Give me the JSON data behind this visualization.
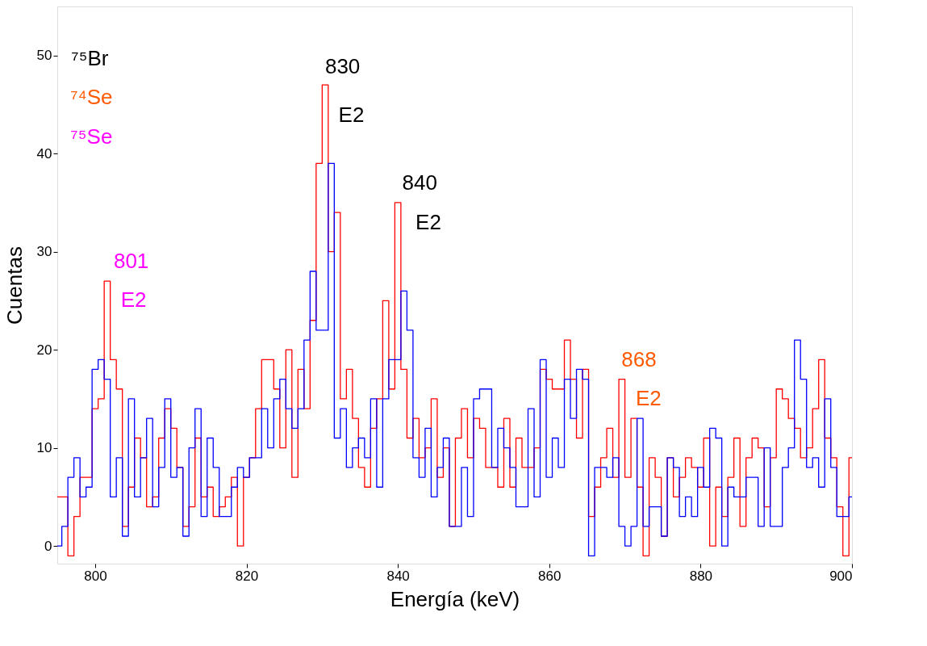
{
  "chart_data": {
    "type": "histogram",
    "xlabel": "Energía (keV)",
    "ylabel": "Cuentas",
    "xlim": [
      795,
      900
    ],
    "xticks": [
      800,
      820,
      840,
      860,
      880,
      900
    ],
    "ylim": [
      -1.8,
      55
    ],
    "yticks": [
      0,
      10,
      20,
      30,
      40,
      50
    ],
    "grid": false,
    "bins": [
      795.0,
      795.6,
      796.4,
      797.2,
      798.0,
      798.8,
      799.6,
      800.4,
      801.2,
      802.0,
      802.8,
      803.6,
      804.4,
      805.2,
      806.0,
      806.8,
      807.6,
      808.4,
      809.2,
      810.0,
      810.8,
      811.6,
      812.4,
      813.2,
      814.0,
      814.8,
      815.6,
      816.4,
      817.2,
      818.0,
      818.8,
      819.6,
      820.4,
      821.2,
      822.0,
      822.8,
      823.6,
      824.4,
      825.2,
      826.0,
      826.8,
      827.6,
      828.4,
      829.2,
      830.0,
      830.8,
      831.6,
      832.4,
      833.2,
      834.0,
      834.8,
      835.6,
      836.4,
      837.2,
      838.0,
      838.8,
      839.6,
      840.4,
      841.2,
      842.0,
      842.8,
      843.6,
      844.4,
      845.2,
      846.0,
      846.8,
      847.6,
      848.4,
      849.2,
      850.0,
      850.8,
      851.6,
      852.4,
      853.2,
      854.0,
      854.8,
      855.6,
      856.4,
      857.2,
      858.0,
      858.8,
      859.6,
      860.4,
      861.2,
      862.0,
      862.8,
      863.6,
      864.4,
      865.2,
      866.0,
      866.8,
      867.6,
      868.4,
      869.2,
      870.0,
      870.8,
      871.6,
      872.4,
      873.2,
      874.0,
      874.8,
      875.6,
      876.4,
      877.2,
      878.0,
      878.8,
      879.6,
      880.4,
      881.2,
      882.0,
      882.8,
      883.6,
      884.4,
      885.2,
      886.0,
      886.8,
      887.6,
      888.4,
      889.2,
      890.0,
      890.8,
      891.6,
      892.4,
      893.2,
      894.0,
      894.8,
      895.6,
      896.4,
      897.2,
      898.0,
      898.8,
      899.6,
      900.0
    ],
    "series": [
      {
        "color": "#ff0000",
        "values": [
          5,
          5,
          -1,
          3,
          7,
          7,
          14,
          15,
          27,
          19,
          16,
          2,
          6,
          11,
          9,
          4,
          5,
          11,
          14,
          12,
          8,
          2,
          4,
          11,
          5,
          6,
          3,
          4,
          5,
          7,
          0,
          7,
          9,
          14,
          19,
          19,
          16,
          10,
          20,
          7,
          18,
          14,
          23,
          39,
          47,
          30,
          34,
          15,
          18,
          13,
          8,
          6,
          12,
          15,
          25,
          16,
          35,
          18,
          11,
          13,
          9,
          10,
          15,
          7,
          10,
          2,
          11,
          14,
          9,
          13,
          12,
          8,
          8,
          6,
          13,
          6,
          11,
          8,
          8,
          10,
          18,
          17,
          16,
          16,
          21,
          17,
          11,
          18,
          3,
          6,
          9,
          12,
          7,
          17,
          7,
          13,
          6,
          -1,
          9,
          7,
          1,
          9,
          5,
          7,
          9,
          8,
          6,
          11,
          0,
          6,
          3,
          7,
          11,
          2,
          9,
          11,
          10,
          4,
          9,
          16,
          15,
          13,
          12,
          9,
          10,
          14,
          19,
          11,
          9,
          4,
          -1,
          9
        ]
      },
      {
        "color": "#0000ff",
        "values": [
          0,
          2,
          7,
          9,
          5,
          6,
          18,
          19,
          17,
          5,
          9,
          1,
          15,
          5,
          9,
          13,
          4,
          8,
          15,
          7,
          8,
          1,
          10,
          14,
          3,
          11,
          8,
          3,
          3,
          6,
          8,
          7,
          9,
          9,
          14,
          10,
          15,
          17,
          14,
          12,
          14,
          21,
          28,
          22,
          22,
          39,
          11,
          14,
          8,
          10,
          11,
          9,
          15,
          6,
          15,
          19,
          19,
          26,
          22,
          9,
          7,
          12,
          5,
          8,
          11,
          2,
          2,
          8,
          3,
          15,
          16,
          16,
          8,
          12,
          10,
          8,
          4,
          4,
          14,
          5,
          19,
          7,
          11,
          8,
          17,
          13,
          18,
          17,
          -1,
          8,
          8,
          7,
          9,
          2,
          0,
          2,
          13,
          2,
          4,
          4,
          1,
          9,
          8,
          3,
          5,
          3,
          8,
          6,
          12,
          11,
          0,
          6,
          5,
          5,
          7,
          7,
          2,
          10,
          2,
          2,
          8,
          10,
          21,
          17,
          8,
          9,
          6,
          15,
          8,
          3,
          3,
          5
        ]
      }
    ],
    "annotations": [
      "⁷⁵Br",
      "⁷⁴Se",
      "⁷⁵Se",
      "801",
      "E2",
      "830",
      "E2",
      "840",
      "E2",
      "868",
      "E2"
    ]
  }
}
